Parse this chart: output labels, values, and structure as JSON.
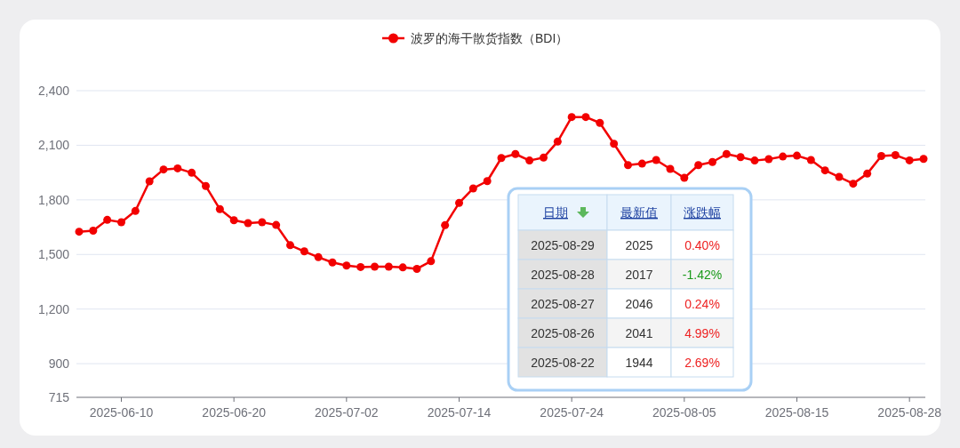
{
  "chart_data": {
    "type": "line",
    "categories": [
      null,
      null,
      null,
      "2025-06-10",
      null,
      null,
      null,
      null,
      null,
      null,
      null,
      "2025-06-20",
      null,
      null,
      null,
      null,
      null,
      null,
      null,
      "2025-07-02",
      null,
      null,
      null,
      null,
      null,
      null,
      null,
      "2025-07-14",
      null,
      null,
      null,
      null,
      null,
      null,
      null,
      "2025-07-24",
      null,
      null,
      null,
      null,
      null,
      null,
      null,
      "2025-08-05",
      null,
      null,
      null,
      null,
      null,
      null,
      null,
      "2025-08-15",
      null,
      null,
      null,
      null,
      null,
      null,
      null,
      "2025-08-28",
      null
    ],
    "series": [
      {
        "name": "波罗的海干散货指数（BDI）",
        "color": "#f20000",
        "values": [
          1625,
          1631,
          1690,
          1677,
          1739,
          1902,
          1967,
          1973,
          1949,
          1876,
          1749,
          1688,
          1672,
          1677,
          1662,
          1551,
          1517,
          1485,
          1456,
          1439,
          1431,
          1433,
          1433,
          1429,
          1421,
          1463,
          1661,
          1783,
          1863,
          1903,
          2030,
          2052,
          2016,
          2032,
          2120,
          2255,
          2255,
          2223,
          2108,
          1991,
          1999,
          2019,
          1970,
          1921,
          1991,
          2008,
          2052,
          2035,
          2016,
          2024,
          2038,
          2043,
          2019,
          1962,
          1926,
          1889,
          1944,
          2041,
          2046,
          2017,
          2025
        ]
      }
    ],
    "ylim": [
      715,
      2400
    ],
    "yticks": [
      715,
      900,
      {
        "value": 1200,
        "label": "1,200"
      },
      {
        "value": 1500,
        "label": "1,500"
      },
      {
        "value": 1800,
        "label": "1,800"
      },
      {
        "value": 2100,
        "label": "2,100"
      },
      {
        "value": 2400,
        "label": "2,400"
      }
    ],
    "grid": "y",
    "legend": "top",
    "marker": "circle",
    "line_style": "solid",
    "annotations": [
      "日期",
      "最新值",
      "涨跌幅",
      "2025-08-29",
      "2025",
      "0.40%",
      "2025-08-28",
      "2017",
      "-1.42%",
      "2025-08-27",
      "2046",
      "0.24%",
      "2025-08-26",
      "2041",
      "4.99%",
      "2025-08-22",
      "1944",
      "2.69%"
    ]
  }
}
